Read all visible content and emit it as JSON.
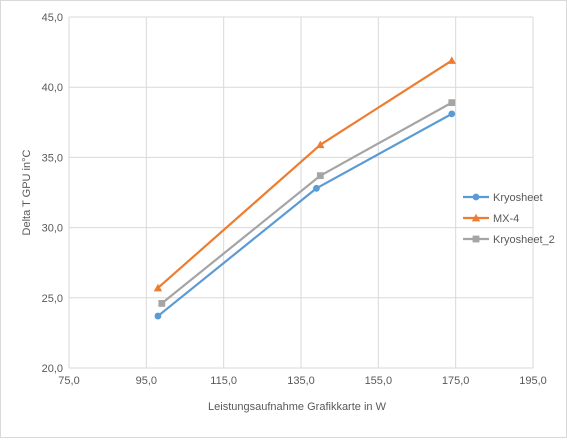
{
  "chart_data": {
    "type": "scatter",
    "title": "",
    "xlabel": "Leistungsaufnahme Grafikkarte in W",
    "ylabel": "Delta T GPU in°C",
    "xlim": [
      75,
      195
    ],
    "ylim": [
      20,
      45
    ],
    "x_ticks": [
      75,
      95,
      115,
      135,
      155,
      175,
      195
    ],
    "y_ticks": [
      20,
      25,
      30,
      35,
      40,
      45
    ],
    "x_tick_labels": [
      "75,0",
      "95,0",
      "115,0",
      "135,0",
      "155,0",
      "175,0",
      "195,0"
    ],
    "y_tick_labels": [
      "20,0",
      "25,0",
      "30,0",
      "35,0",
      "40,0",
      "45,0"
    ],
    "grid": "vertical and horizontal major gridlines",
    "legend_position": "right",
    "series": [
      {
        "name": "Kryosheet",
        "color": "#5b9bd5",
        "marker": "circle",
        "x": [
          98.0,
          139.0,
          174.0
        ],
        "y": [
          23.7,
          32.8,
          38.1
        ]
      },
      {
        "name": "MX-4",
        "color": "#ed7d31",
        "marker": "triangle",
        "x": [
          98.0,
          140.0,
          174.0
        ],
        "y": [
          25.7,
          35.9,
          41.9
        ]
      },
      {
        "name": "Kryosheet_2",
        "color": "#a5a5a5",
        "marker": "square",
        "x": [
          99.0,
          140.0,
          174.0
        ],
        "y": [
          24.6,
          33.7,
          38.9
        ]
      }
    ]
  }
}
